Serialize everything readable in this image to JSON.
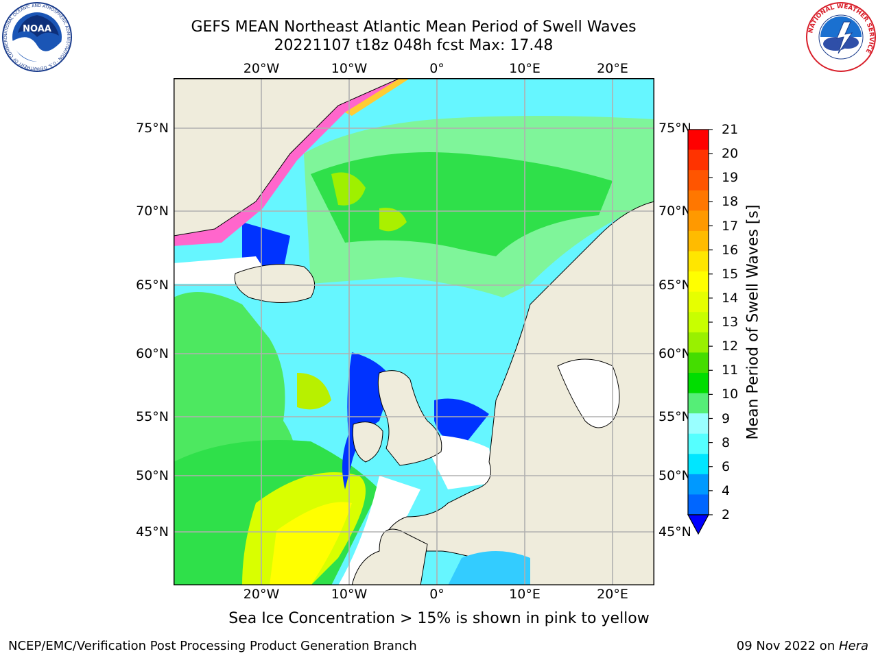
{
  "header": {
    "title_line1": "GEFS MEAN Northeast Atlantic Mean Period of Swell Waves",
    "title_line2": "20221107 t18z 048h fcst   Max: 17.48"
  },
  "logos": {
    "noaa_text": "NOAA",
    "noaa_ring_text": "NATIONAL OCEANIC AND ATMOSPHERIC ADMINISTRATION · U.S. DEPARTMENT OF COMMERCE",
    "nws_ring_text": "NATIONAL WEATHER SERVICE"
  },
  "map": {
    "lon_labels": [
      "20°W",
      "10°W",
      "0°",
      "10°E",
      "20°E"
    ],
    "lat_labels": [
      "75°N",
      "70°N",
      "65°N",
      "60°N",
      "55°N",
      "50°N",
      "45°N"
    ],
    "colors": {
      "land": "#efecdc",
      "grid": "#b0b0b0"
    }
  },
  "colorbar": {
    "title": "Mean Period of Swell Waves [s]",
    "ticks": [
      "21",
      "20",
      "19",
      "18",
      "17",
      "16",
      "15",
      "14",
      "13",
      "12",
      "11",
      "10",
      "9",
      "8",
      "6",
      "4",
      "2"
    ],
    "colors": [
      "#ff0000",
      "#ff3300",
      "#ff5500",
      "#ff7700",
      "#ff9900",
      "#ffbb00",
      "#ffe600",
      "#ffff00",
      "#e6ff00",
      "#c8ff00",
      "#99f000",
      "#44dd00",
      "#00dd00",
      "#55ee77",
      "#99ffff",
      "#55ffff",
      "#00e6ff",
      "#0099ff",
      "#0066ff",
      "#0000ff"
    ]
  },
  "footer": {
    "note": "Sea Ice Concentration > 15% is shown in pink to yellow",
    "left": "NCEP/EMC/Verification Post Processing Product Generation Branch",
    "date": "09 Nov 2022 on ",
    "machine": "Hera"
  }
}
